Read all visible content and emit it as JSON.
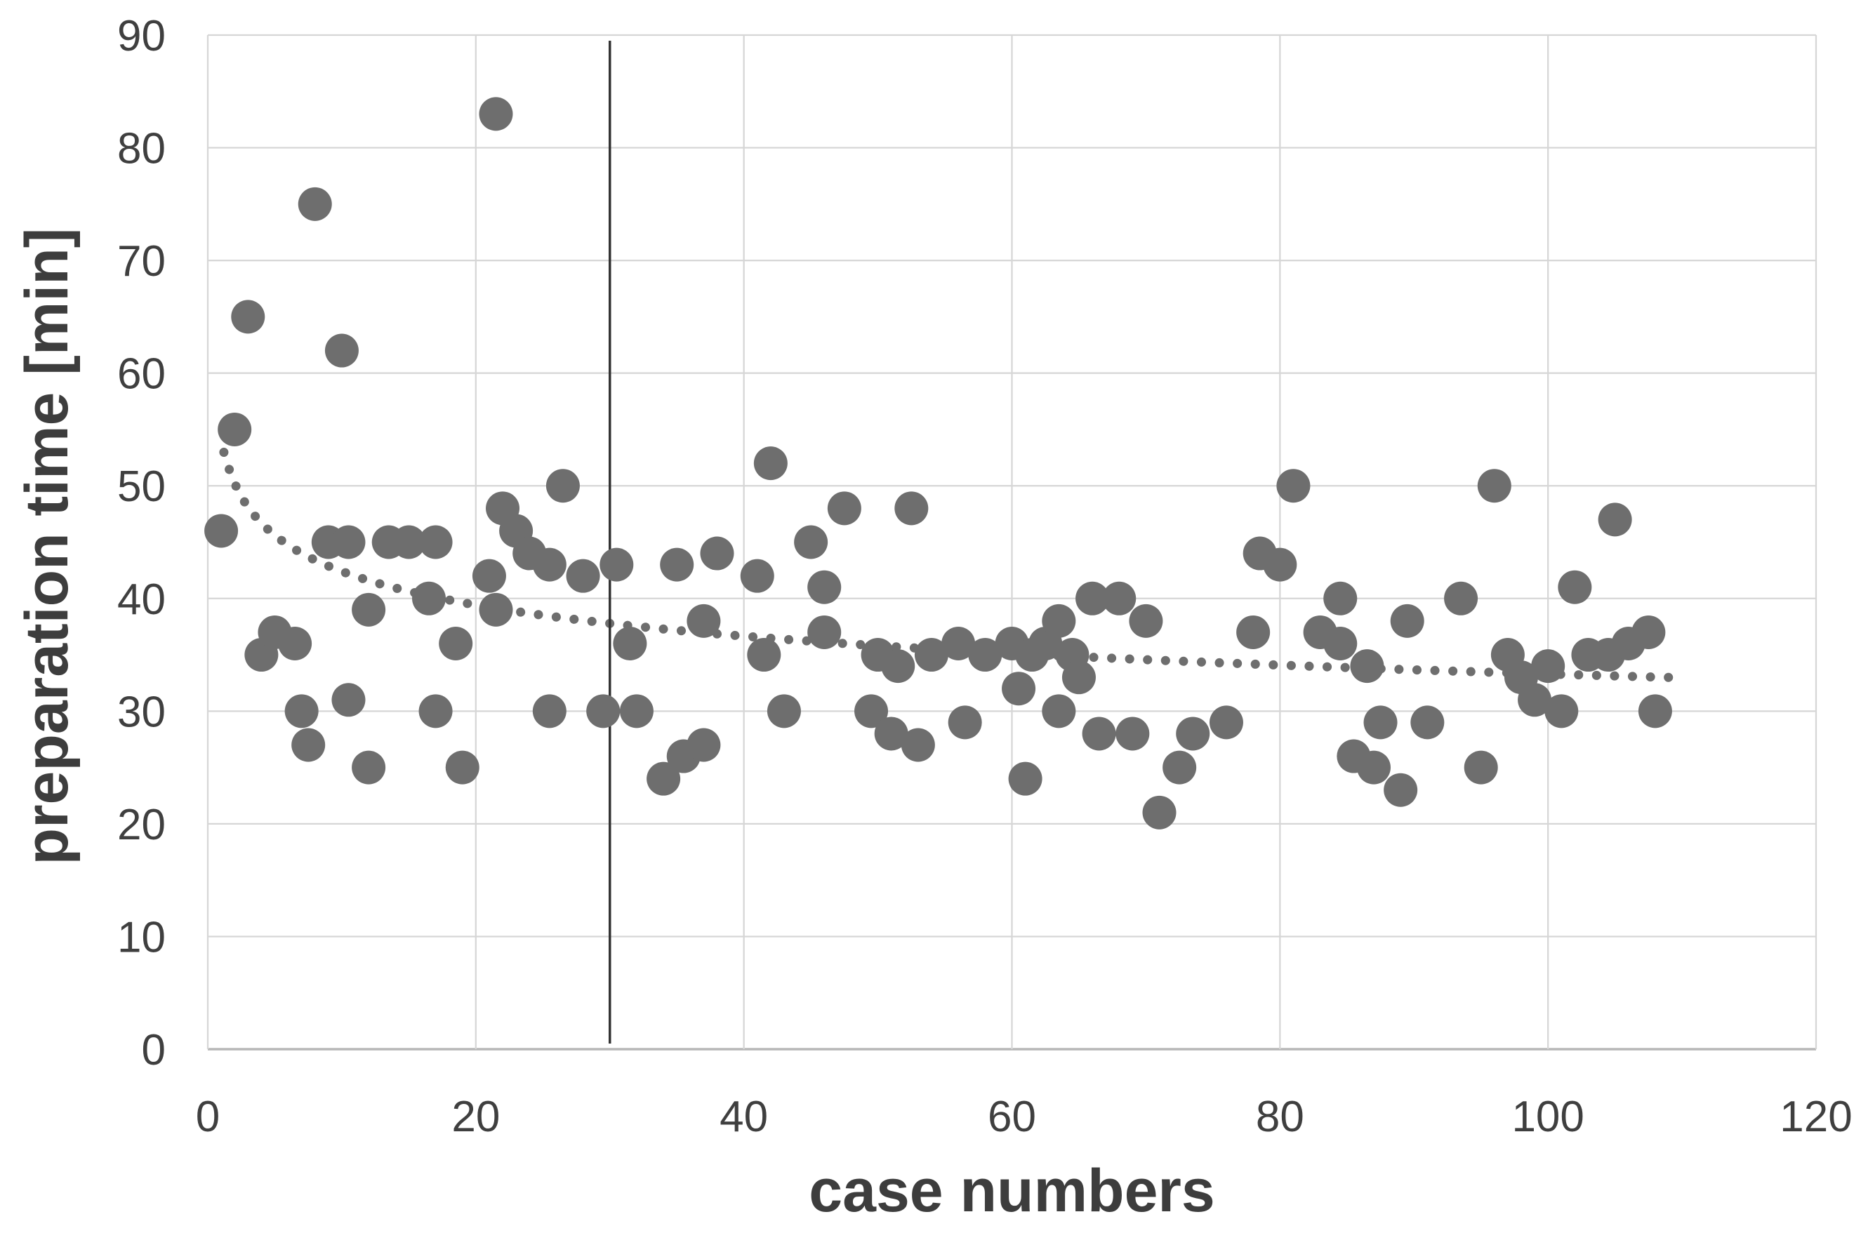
{
  "chart_data": {
    "type": "scatter",
    "title": "",
    "xlabel": "case numbers",
    "ylabel": "preparation time [min]",
    "xlim": [
      0,
      120
    ],
    "ylim": [
      0,
      90
    ],
    "xstep": 20,
    "ystep": 10,
    "grid": true,
    "legend": "none",
    "x_tick_labels": [
      "0",
      "20",
      "40",
      "60",
      "80",
      "100",
      "120"
    ],
    "y_tick_labels": [
      "0",
      "10",
      "20",
      "30",
      "40",
      "50",
      "60",
      "70",
      "80",
      "90"
    ],
    "colors": {
      "marker": "#6e6e6e",
      "trend": "#6e6e6e",
      "gridline": "#d6d6d6",
      "axis_line": "#b7b7b7",
      "reference_line": "#333333",
      "tick_text": "#3f3f3f",
      "title_text": "#3d3d3d",
      "background": "#ffffff"
    },
    "marker_radius_px": 24,
    "reference_vline": {
      "x": 30,
      "y_from": 0.5,
      "y_to": 89.5
    },
    "trendline": {
      "type": "power",
      "a": 54,
      "b": -0.105,
      "x_start": 1.2,
      "x_end": 110,
      "style": "dotted"
    },
    "points": [
      [
        1,
        46
      ],
      [
        2,
        55
      ],
      [
        3,
        65
      ],
      [
        4,
        35
      ],
      [
        5,
        37
      ],
      [
        6.5,
        36
      ],
      [
        7,
        30
      ],
      [
        7.5,
        27
      ],
      [
        8,
        75
      ],
      [
        9,
        45
      ],
      [
        10,
        62
      ],
      [
        10.5,
        45
      ],
      [
        10.5,
        31
      ],
      [
        12,
        39
      ],
      [
        12,
        25
      ],
      [
        13.5,
        45
      ],
      [
        15,
        45
      ],
      [
        16.5,
        40
      ],
      [
        17,
        45
      ],
      [
        17,
        30
      ],
      [
        18.5,
        36
      ],
      [
        19,
        25
      ],
      [
        21,
        42
      ],
      [
        21.5,
        39
      ],
      [
        21.5,
        83
      ],
      [
        22,
        48
      ],
      [
        23,
        46
      ],
      [
        24,
        44
      ],
      [
        25.5,
        43
      ],
      [
        25.5,
        30
      ],
      [
        26.5,
        50
      ],
      [
        28,
        42
      ],
      [
        29.5,
        30
      ],
      [
        30.5,
        43
      ],
      [
        31.5,
        36
      ],
      [
        32,
        30
      ],
      [
        34,
        24
      ],
      [
        35,
        43
      ],
      [
        35.5,
        26
      ],
      [
        37,
        27
      ],
      [
        37,
        38
      ],
      [
        38,
        44
      ],
      [
        41,
        42
      ],
      [
        41.5,
        35
      ],
      [
        42,
        52
      ],
      [
        43,
        30
      ],
      [
        45,
        45
      ],
      [
        46,
        41
      ],
      [
        46,
        37
      ],
      [
        47.5,
        48
      ],
      [
        49.5,
        30
      ],
      [
        50,
        35
      ],
      [
        51,
        28
      ],
      [
        51.5,
        34
      ],
      [
        52.5,
        48
      ],
      [
        53,
        27
      ],
      [
        54,
        35
      ],
      [
        56,
        36
      ],
      [
        56.5,
        29
      ],
      [
        58,
        35
      ],
      [
        60,
        36
      ],
      [
        60.5,
        32
      ],
      [
        61,
        24
      ],
      [
        61.5,
        35
      ],
      [
        62.5,
        36
      ],
      [
        63.5,
        38
      ],
      [
        63.5,
        30
      ],
      [
        64.5,
        35
      ],
      [
        65,
        33
      ],
      [
        66,
        40
      ],
      [
        66.5,
        28
      ],
      [
        68,
        40
      ],
      [
        69,
        28
      ],
      [
        70,
        38
      ],
      [
        71,
        21
      ],
      [
        72.5,
        25
      ],
      [
        73.5,
        28
      ],
      [
        76,
        29
      ],
      [
        78,
        37
      ],
      [
        78.5,
        44
      ],
      [
        80,
        43
      ],
      [
        81,
        50
      ],
      [
        83,
        37
      ],
      [
        84.5,
        40
      ],
      [
        84.5,
        36
      ],
      [
        85.5,
        26
      ],
      [
        86.5,
        34
      ],
      [
        87,
        25
      ],
      [
        87.5,
        29
      ],
      [
        89,
        23
      ],
      [
        89.5,
        38
      ],
      [
        91,
        29
      ],
      [
        93.5,
        40
      ],
      [
        95,
        25
      ],
      [
        96,
        50
      ],
      [
        97,
        35
      ],
      [
        98,
        33
      ],
      [
        99,
        31
      ],
      [
        100,
        34
      ],
      [
        101,
        30
      ],
      [
        102,
        41
      ],
      [
        103,
        35
      ],
      [
        104.5,
        35
      ],
      [
        105,
        47
      ],
      [
        106,
        36
      ],
      [
        107.5,
        37
      ],
      [
        108,
        30
      ]
    ],
    "layout": {
      "plot_left": 296,
      "plot_top": 50,
      "plot_right": 2587,
      "plot_bottom": 1495,
      "tick_font_px": 62,
      "title_font_px": 86
    }
  }
}
